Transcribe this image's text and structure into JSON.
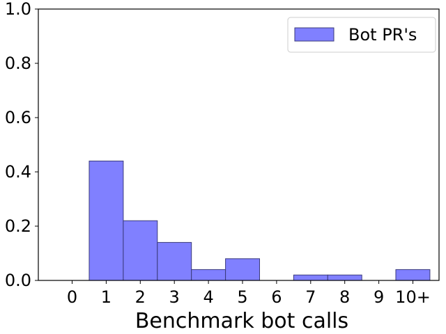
{
  "chart_data": {
    "type": "bar",
    "categories": [
      "0",
      "1",
      "2",
      "3",
      "4",
      "5",
      "6",
      "7",
      "8",
      "9",
      "10+"
    ],
    "series": [
      {
        "name": "Bot PR's",
        "values": [
          0,
          0.44,
          0.22,
          0.14,
          0.04,
          0.08,
          0,
          0.02,
          0.02,
          0,
          0.04
        ],
        "color": "#8080ff",
        "edge_color": "#3a3a7a"
      }
    ],
    "title": "",
    "xlabel": "Benchmark bot calls",
    "ylabel": "",
    "ylim": [
      0,
      1.0
    ],
    "yticks": [
      "0.0",
      "0.2",
      "0.4",
      "0.6",
      "0.8",
      "1.0"
    ],
    "grid": false,
    "legend_position": "top-right"
  }
}
